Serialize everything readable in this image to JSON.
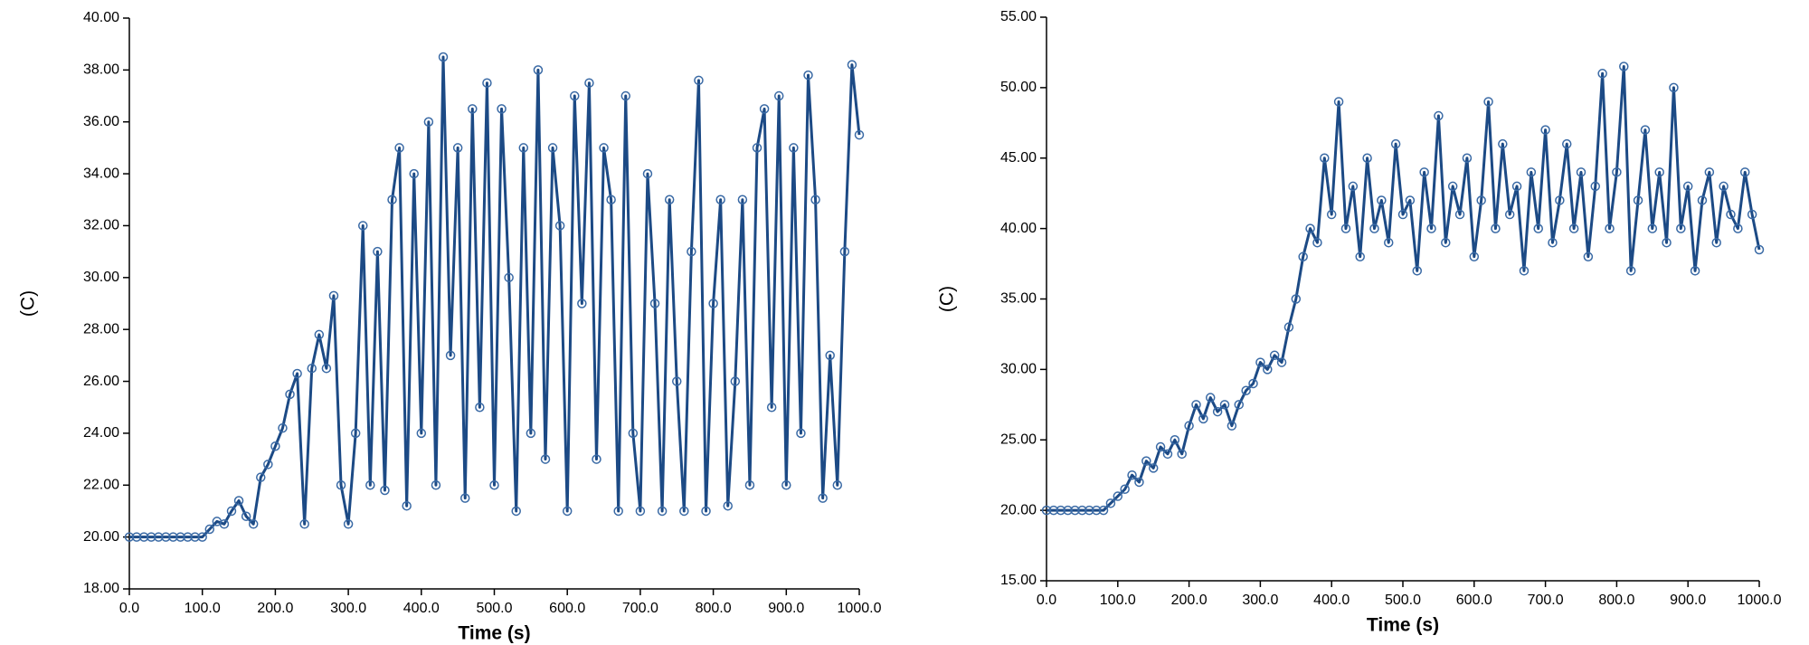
{
  "chart_data": [
    {
      "type": "line",
      "xlabel": "Time (s)",
      "ylabel": "(C)",
      "color": "#1c4a85",
      "x": [
        0,
        10,
        20,
        30,
        40,
        50,
        60,
        70,
        80,
        90,
        100,
        110,
        120,
        130,
        140,
        150,
        160,
        170,
        180,
        190,
        200,
        210,
        220,
        230,
        240,
        250,
        260,
        270,
        280,
        290,
        300,
        310,
        320,
        330,
        340,
        350,
        360,
        370,
        380,
        390,
        400,
        410,
        420,
        430,
        440,
        450,
        460,
        470,
        480,
        490,
        500,
        510,
        520,
        530,
        540,
        550,
        560,
        570,
        580,
        590,
        600,
        610,
        620,
        630,
        640,
        650,
        660,
        670,
        680,
        690,
        700,
        710,
        720,
        730,
        740,
        750,
        760,
        770,
        780,
        790,
        800,
        810,
        820,
        830,
        840,
        850,
        860,
        870,
        880,
        890,
        900,
        910,
        920,
        930,
        940,
        950,
        960,
        970,
        980,
        990,
        1000
      ],
      "series": [
        {
          "values": [
            20,
            20,
            20,
            20,
            20,
            20,
            20,
            20,
            20,
            20,
            20,
            20.3,
            20.6,
            20.5,
            21,
            21.4,
            20.8,
            20.5,
            22.3,
            22.8,
            23.5,
            24.2,
            25.5,
            26.3,
            20.5,
            26.5,
            27.8,
            26.5,
            29.3,
            22,
            20.5,
            24,
            32,
            22,
            31,
            21.8,
            33,
            35,
            21.2,
            34,
            24,
            36,
            22,
            38.5,
            27,
            35,
            21.5,
            36.5,
            25,
            37.5,
            22,
            36.5,
            30,
            21,
            35,
            24,
            38,
            23,
            35,
            32,
            21,
            37,
            29,
            37.5,
            23,
            35,
            33,
            21,
            37,
            24,
            21,
            34,
            29,
            21,
            33,
            26,
            21,
            31,
            37.6,
            21,
            29,
            33,
            21.2,
            26,
            33,
            22,
            35,
            36.5,
            25,
            37,
            22,
            35,
            24,
            37.8,
            33,
            21.5,
            27,
            22,
            31,
            38.2,
            35.5
          ]
        }
      ],
      "xlim": [
        0,
        1000
      ],
      "xticks": [
        {
          "value": 0,
          "label": "0.0"
        },
        {
          "value": 100,
          "label": "100.0"
        },
        {
          "value": 200,
          "label": "200.0"
        },
        {
          "value": 300,
          "label": "300.0"
        },
        {
          "value": 400,
          "label": "400.0"
        },
        {
          "value": 500,
          "label": "500.0"
        },
        {
          "value": 600,
          "label": "600.0"
        },
        {
          "value": 700,
          "label": "700.0"
        },
        {
          "value": 800,
          "label": "800.0"
        },
        {
          "value": 900,
          "label": "900.0"
        },
        {
          "value": 1000,
          "label": "1000.0"
        }
      ],
      "ylim": [
        18,
        40
      ],
      "yticks": [
        {
          "value": 18,
          "label": "18.00"
        },
        {
          "value": 20,
          "label": "20.00"
        },
        {
          "value": 22,
          "label": "22.00"
        },
        {
          "value": 24,
          "label": "24.00"
        },
        {
          "value": 26,
          "label": "26.00"
        },
        {
          "value": 28,
          "label": "28.00"
        },
        {
          "value": 30,
          "label": "30.00"
        },
        {
          "value": 32,
          "label": "32.00"
        },
        {
          "value": 34,
          "label": "34.00"
        },
        {
          "value": 36,
          "label": "36.00"
        },
        {
          "value": 38,
          "label": "38.00"
        },
        {
          "value": 40,
          "label": "40.00"
        }
      ]
    },
    {
      "type": "line",
      "xlabel": "Time (s)",
      "ylabel": "(C)",
      "color": "#1c4a85",
      "x": [
        0,
        10,
        20,
        30,
        40,
        50,
        60,
        70,
        80,
        90,
        100,
        110,
        120,
        130,
        140,
        150,
        160,
        170,
        180,
        190,
        200,
        210,
        220,
        230,
        240,
        250,
        260,
        270,
        280,
        290,
        300,
        310,
        320,
        330,
        340,
        350,
        360,
        370,
        380,
        390,
        400,
        410,
        420,
        430,
        440,
        450,
        460,
        470,
        480,
        490,
        500,
        510,
        520,
        530,
        540,
        550,
        560,
        570,
        580,
        590,
        600,
        610,
        620,
        630,
        640,
        650,
        660,
        670,
        680,
        690,
        700,
        710,
        720,
        730,
        740,
        750,
        760,
        770,
        780,
        790,
        800,
        810,
        820,
        830,
        840,
        850,
        860,
        870,
        880,
        890,
        900,
        910,
        920,
        930,
        940,
        950,
        960,
        970,
        980,
        990,
        1000
      ],
      "series": [
        {
          "values": [
            20,
            20,
            20,
            20,
            20,
            20,
            20,
            20,
            20,
            20.5,
            21,
            21.5,
            22.5,
            22,
            23.5,
            23,
            24.5,
            24,
            25,
            24,
            26,
            27.5,
            26.5,
            28,
            27,
            27.5,
            26,
            27.5,
            28.5,
            29,
            30.5,
            30,
            31,
            30.5,
            33,
            35,
            38,
            40,
            39,
            45,
            41,
            49,
            40,
            43,
            38,
            45,
            40,
            42,
            39,
            46,
            41,
            42,
            37,
            44,
            40,
            48,
            39,
            43,
            41,
            45,
            38,
            42,
            49,
            40,
            46,
            41,
            43,
            37,
            44,
            40,
            47,
            39,
            42,
            46,
            40,
            44,
            38,
            43,
            51,
            40,
            44,
            51.5,
            37,
            42,
            47,
            40,
            44,
            39,
            50,
            40,
            43,
            37,
            42,
            44,
            39,
            43,
            41,
            40,
            44,
            41,
            38.5
          ]
        }
      ],
      "xlim": [
        0,
        1000
      ],
      "xticks": [
        {
          "value": 0,
          "label": "0.0"
        },
        {
          "value": 100,
          "label": "100.0"
        },
        {
          "value": 200,
          "label": "200.0"
        },
        {
          "value": 300,
          "label": "300.0"
        },
        {
          "value": 400,
          "label": "400.0"
        },
        {
          "value": 500,
          "label": "500.0"
        },
        {
          "value": 600,
          "label": "600.0"
        },
        {
          "value": 700,
          "label": "700.0"
        },
        {
          "value": 800,
          "label": "800.0"
        },
        {
          "value": 900,
          "label": "900.0"
        },
        {
          "value": 1000,
          "label": "1000.0"
        }
      ],
      "ylim": [
        15,
        55
      ],
      "yticks": [
        {
          "value": 15,
          "label": "15.00"
        },
        {
          "value": 20,
          "label": "20.00"
        },
        {
          "value": 25,
          "label": "25.00"
        },
        {
          "value": 30,
          "label": "30.00"
        },
        {
          "value": 35,
          "label": "35.00"
        },
        {
          "value": 40,
          "label": "40.00"
        },
        {
          "value": 45,
          "label": "45.00"
        },
        {
          "value": 50,
          "label": "50.00"
        },
        {
          "value": 55,
          "label": "55.00"
        }
      ]
    }
  ]
}
